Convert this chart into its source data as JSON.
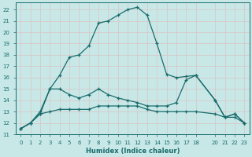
{
  "xlabel": "Humidex (Indice chaleur)",
  "background_color": "#c8e8e8",
  "grid_color": "#d0d0d0",
  "line_color": "#1a6b6b",
  "xlim": [
    -0.5,
    23.5
  ],
  "ylim": [
    11,
    22.6
  ],
  "xticks": [
    0,
    1,
    2,
    3,
    4,
    5,
    6,
    7,
    8,
    9,
    10,
    11,
    12,
    13,
    14,
    15,
    16,
    17,
    18,
    20,
    21,
    22,
    23
  ],
  "yticks": [
    11,
    12,
    13,
    14,
    15,
    16,
    17,
    18,
    19,
    20,
    21,
    22
  ],
  "x_humidex": [
    0,
    1,
    2,
    3,
    4,
    5,
    6,
    7,
    8,
    9,
    10,
    11,
    12,
    13,
    14,
    15,
    16,
    17,
    18,
    20,
    21,
    22,
    23
  ],
  "series": [
    [
      11.5,
      12.0,
      13.0,
      15.0,
      16.2,
      17.8,
      18.0,
      18.8,
      20.8,
      21.0,
      21.5,
      22.0,
      22.2,
      21.5,
      19.0,
      16.3,
      16.0,
      16.1,
      16.2,
      14.0,
      12.5,
      12.8,
      12.0
    ],
    [
      11.5,
      12.0,
      12.8,
      15.0,
      15.0,
      14.5,
      14.2,
      14.5,
      15.0,
      14.5,
      14.2,
      14.0,
      13.8,
      13.5,
      13.5,
      13.5,
      13.8,
      15.8,
      16.2,
      14.0,
      12.5,
      12.8,
      12.0
    ],
    [
      11.5,
      12.0,
      12.8,
      13.0,
      13.2,
      13.2,
      13.2,
      13.2,
      13.5,
      13.5,
      13.5,
      13.5,
      13.5,
      13.2,
      13.0,
      13.0,
      13.0,
      13.0,
      13.0,
      12.8,
      12.5,
      12.5,
      12.0
    ]
  ]
}
